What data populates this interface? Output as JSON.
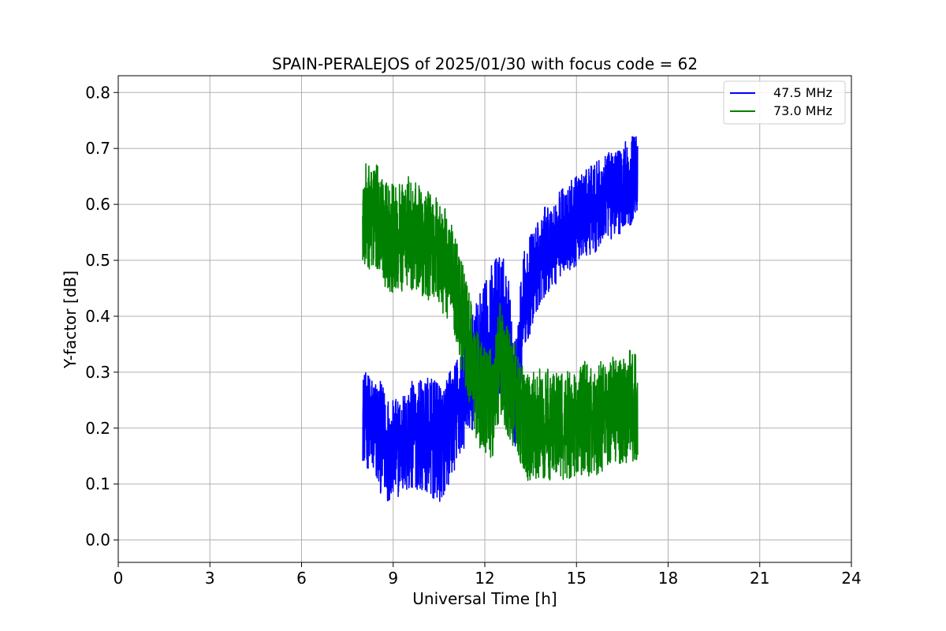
{
  "chart_data": {
    "type": "line",
    "title": "SPAIN-PERALEJOS of 2025/01/30 with focus code = 62",
    "xlabel": "Universal Time [h]",
    "ylabel": "Y-factor [dB]",
    "xlim": [
      0,
      24
    ],
    "ylim": [
      -0.04,
      0.83
    ],
    "xticks": [
      0,
      3,
      6,
      9,
      12,
      15,
      18,
      21,
      24
    ],
    "yticks": [
      0.0,
      0.1,
      0.2,
      0.3,
      0.4,
      0.5,
      0.6,
      0.7,
      0.8
    ],
    "xtick_labels": [
      "0",
      "3",
      "6",
      "9",
      "12",
      "15",
      "18",
      "21",
      "24"
    ],
    "ytick_labels": [
      "0.0",
      "0.1",
      "0.2",
      "0.3",
      "0.4",
      "0.5",
      "0.6",
      "0.7",
      "0.8"
    ],
    "grid": true,
    "legend_position": "top-right",
    "series": [
      {
        "name": "47.5 MHz",
        "color": "#0000ff",
        "x": [
          8.0,
          8.25,
          8.5,
          8.75,
          9.0,
          9.25,
          9.5,
          9.75,
          10.0,
          10.25,
          10.5,
          10.75,
          11.0,
          11.25,
          11.5,
          11.75,
          12.0,
          12.25,
          12.5,
          12.75,
          13.0,
          13.25,
          13.5,
          13.75,
          14.0,
          14.25,
          14.5,
          14.75,
          15.0,
          15.25,
          15.5,
          15.75,
          16.0,
          16.25,
          16.5,
          16.75,
          17.0
        ],
        "center": [
          0.22,
          0.21,
          0.19,
          0.17,
          0.16,
          0.17,
          0.18,
          0.19,
          0.19,
          0.18,
          0.17,
          0.19,
          0.22,
          0.25,
          0.29,
          0.32,
          0.35,
          0.37,
          0.38,
          0.36,
          0.25,
          0.42,
          0.46,
          0.49,
          0.52,
          0.53,
          0.55,
          0.56,
          0.57,
          0.58,
          0.59,
          0.6,
          0.61,
          0.62,
          0.63,
          0.64,
          0.66
        ],
        "amplitude": [
          0.08,
          0.09,
          0.1,
          0.1,
          0.09,
          0.09,
          0.1,
          0.1,
          0.1,
          0.11,
          0.11,
          0.1,
          0.1,
          0.1,
          0.1,
          0.11,
          0.11,
          0.13,
          0.14,
          0.13,
          0.1,
          0.09,
          0.09,
          0.08,
          0.08,
          0.08,
          0.08,
          0.08,
          0.08,
          0.08,
          0.08,
          0.08,
          0.08,
          0.08,
          0.08,
          0.08,
          0.07
        ]
      },
      {
        "name": "73.0 MHz",
        "color": "#008000",
        "x": [
          8.0,
          8.25,
          8.5,
          8.75,
          9.0,
          9.25,
          9.5,
          9.75,
          10.0,
          10.25,
          10.5,
          10.75,
          11.0,
          11.25,
          11.5,
          11.75,
          12.0,
          12.25,
          12.5,
          12.75,
          13.0,
          13.25,
          13.5,
          13.75,
          14.0,
          14.25,
          14.5,
          14.75,
          15.0,
          15.25,
          15.5,
          15.75,
          16.0,
          16.25,
          16.5,
          16.75,
          17.0
        ],
        "center": [
          0.57,
          0.58,
          0.57,
          0.55,
          0.54,
          0.54,
          0.55,
          0.54,
          0.53,
          0.52,
          0.51,
          0.49,
          0.45,
          0.4,
          0.34,
          0.27,
          0.25,
          0.24,
          0.33,
          0.28,
          0.25,
          0.21,
          0.2,
          0.21,
          0.21,
          0.2,
          0.2,
          0.21,
          0.21,
          0.22,
          0.21,
          0.22,
          0.22,
          0.23,
          0.23,
          0.24,
          0.24
        ]
      }
    ]
  }
}
